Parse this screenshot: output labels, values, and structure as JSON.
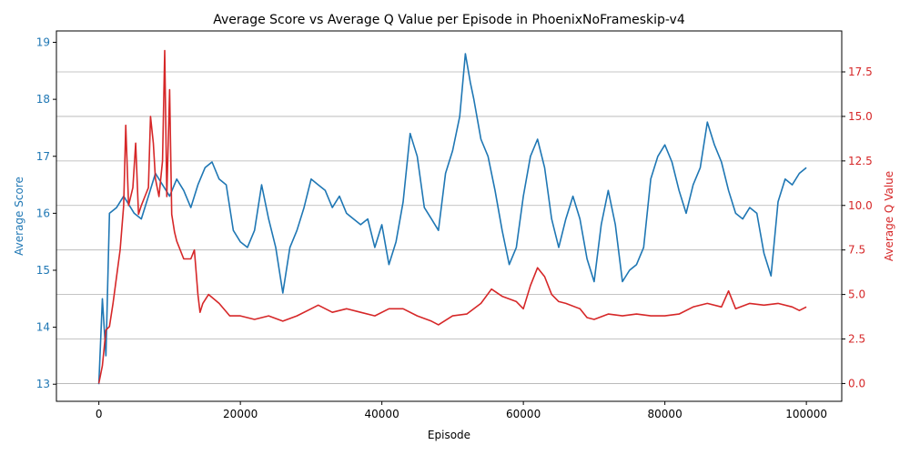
{
  "chart_data": {
    "type": "line",
    "title": "Average Score vs Average Q Value per Episode in PhoenixNoFrameskip-v4",
    "xlabel": "Episode",
    "ylabel_left": "Average Score",
    "ylabel_right": "Average Q Value",
    "xlim": [
      -6000,
      105000
    ],
    "ylim_left": [
      12.7,
      19.2
    ],
    "ylim_right": [
      -1.0,
      19.8
    ],
    "x_ticks": [
      0,
      20000,
      40000,
      60000,
      80000,
      100000
    ],
    "x_tick_labels": [
      "0",
      "20000",
      "40000",
      "60000",
      "80000",
      "100000"
    ],
    "y_left_ticks": [
      13,
      14,
      15,
      16,
      17,
      18,
      19
    ],
    "y_left_tick_labels": [
      "13",
      "14",
      "15",
      "16",
      "17",
      "18",
      "19"
    ],
    "y_right_ticks": [
      0,
      2.5,
      5,
      7.5,
      10,
      12.5,
      15,
      17.5
    ],
    "y_right_tick_labels": [
      "0.0",
      "2.5",
      "5.0",
      "7.5",
      "10.0",
      "12.5",
      "15.0",
      "17.5"
    ],
    "grid": "horizontal lines at right-axis ticks",
    "colors": {
      "score": "#1f77b4",
      "q": "#d62728",
      "axis": "#000000",
      "grid": "#b0b0b0"
    },
    "series": [
      {
        "name": "Average Score",
        "axis": "left",
        "color": "#1f77b4",
        "x": [
          0,
          500,
          1000,
          1500,
          2500,
          3500,
          5000,
          6000,
          7000,
          8000,
          9000,
          10000,
          11000,
          12000,
          13000,
          14000,
          15000,
          16000,
          17000,
          18000,
          19000,
          20000,
          21000,
          22000,
          23000,
          24000,
          25000,
          26000,
          27000,
          28000,
          29000,
          30000,
          31000,
          32000,
          33000,
          34000,
          35000,
          36000,
          37000,
          38000,
          39000,
          40000,
          41000,
          42000,
          43000,
          44000,
          45000,
          46000,
          47000,
          48000,
          49000,
          50000,
          51000,
          51800,
          52500,
          53000,
          54000,
          55000,
          56000,
          57000,
          58000,
          59000,
          60000,
          61000,
          62000,
          63000,
          64000,
          65000,
          66000,
          67000,
          68000,
          69000,
          70000,
          71000,
          72000,
          73000,
          74000,
          75000,
          76000,
          77000,
          78000,
          79000,
          80000,
          81000,
          82000,
          83000,
          84000,
          85000,
          86000,
          87000,
          88000,
          89000,
          90000,
          91000,
          92000,
          93000,
          94000,
          95000,
          96000,
          97000,
          98000,
          99000,
          100000
        ],
        "y": [
          13.0,
          14.5,
          13.5,
          16.0,
          16.1,
          16.3,
          16.0,
          15.9,
          16.3,
          16.7,
          16.5,
          16.3,
          16.6,
          16.4,
          16.1,
          16.5,
          16.8,
          16.9,
          16.6,
          16.5,
          15.7,
          15.5,
          15.4,
          15.7,
          16.5,
          15.9,
          15.4,
          14.6,
          15.4,
          15.7,
          16.1,
          16.6,
          16.5,
          16.4,
          16.1,
          16.3,
          16.0,
          15.9,
          15.8,
          15.9,
          15.4,
          15.8,
          15.1,
          15.5,
          16.2,
          17.4,
          17.0,
          16.1,
          15.9,
          15.7,
          16.7,
          17.1,
          17.7,
          18.8,
          18.3,
          18.0,
          17.3,
          17.0,
          16.4,
          15.7,
          15.1,
          15.4,
          16.3,
          17.0,
          17.3,
          16.8,
          15.9,
          15.4,
          15.9,
          16.3,
          15.9,
          15.2,
          14.8,
          15.8,
          16.4,
          15.8,
          14.8,
          15.0,
          15.1,
          15.4,
          16.6,
          17.0,
          17.2,
          16.9,
          16.4,
          16.0,
          16.5,
          16.8,
          17.6,
          17.2,
          16.9,
          16.4,
          16.0,
          15.9,
          16.1,
          16.0,
          15.3,
          14.9,
          16.2,
          16.6,
          16.5,
          16.7,
          16.8
        ]
      },
      {
        "name": "Average Q Value",
        "axis": "right",
        "color": "#d62728",
        "x": [
          0,
          500,
          1000,
          1500,
          2000,
          2500,
          3000,
          3500,
          3800,
          4200,
          4800,
          5200,
          5600,
          6000,
          6500,
          7000,
          7300,
          7700,
          8000,
          8500,
          9000,
          9300,
          9600,
          10000,
          10300,
          10700,
          11000,
          12000,
          13000,
          13500,
          14000,
          14300,
          14700,
          15500,
          17000,
          18500,
          20000,
          22000,
          24000,
          26000,
          28000,
          30000,
          31000,
          33000,
          35000,
          37000,
          39000,
          41000,
          43000,
          45000,
          47000,
          48000,
          50000,
          52000,
          54000,
          55500,
          57000,
          59000,
          60000,
          61000,
          62000,
          63000,
          64000,
          65000,
          66000,
          68000,
          69000,
          70000,
          72000,
          74000,
          76000,
          78000,
          80000,
          82000,
          84000,
          86000,
          88000,
          89000,
          90000,
          92000,
          94000,
          96000,
          98000,
          99000,
          100000
        ],
        "y": [
          0.0,
          1.0,
          3.0,
          3.2,
          4.5,
          6.0,
          7.5,
          10.0,
          14.5,
          10.0,
          11.0,
          13.5,
          9.5,
          10.0,
          10.5,
          11.0,
          15.0,
          13.5,
          11.5,
          10.5,
          12.5,
          18.7,
          10.5,
          16.5,
          9.5,
          8.5,
          8.0,
          7.0,
          7.0,
          7.5,
          5.0,
          4.0,
          4.5,
          5.0,
          4.5,
          3.8,
          3.8,
          3.6,
          3.8,
          3.5,
          3.8,
          4.2,
          4.4,
          4.0,
          4.2,
          4.0,
          3.8,
          4.2,
          4.2,
          3.8,
          3.5,
          3.3,
          3.8,
          3.9,
          4.5,
          5.3,
          4.9,
          4.6,
          4.2,
          5.5,
          6.5,
          6.0,
          5.0,
          4.6,
          4.5,
          4.2,
          3.7,
          3.6,
          3.9,
          3.8,
          3.9,
          3.8,
          3.8,
          3.9,
          4.3,
          4.5,
          4.3,
          5.2,
          4.2,
          4.5,
          4.4,
          4.5,
          4.3,
          4.1,
          4.3
        ]
      }
    ]
  }
}
